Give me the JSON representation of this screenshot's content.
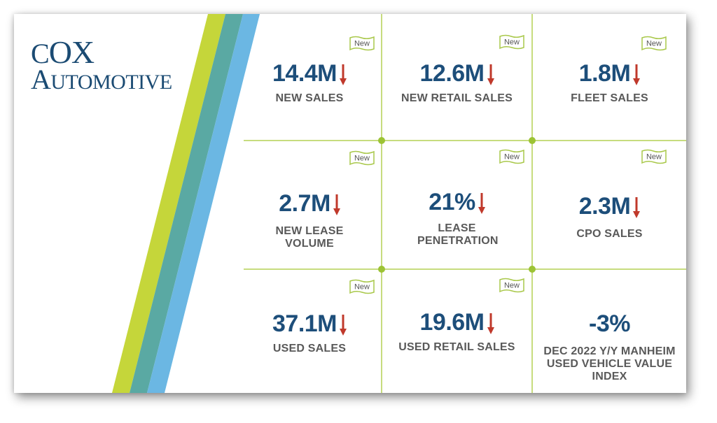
{
  "brand": {
    "line1": "Cox",
    "line2": "Automotive",
    "colors": {
      "lime": "#c5d63a",
      "teal": "#5aa9a3",
      "sky": "#6bb7e3",
      "navy": "#1b4b73"
    }
  },
  "badge_text": "New",
  "tiles": [
    {
      "value": "14.4M",
      "label": "NEW SALES",
      "trend": "down",
      "badge": true
    },
    {
      "value": "12.6M",
      "label": "NEW RETAIL SALES",
      "trend": "down",
      "badge": true
    },
    {
      "value": "1.8M",
      "label": "FLEET SALES",
      "trend": "down",
      "badge": true
    },
    {
      "value": "2.7M",
      "label": "NEW LEASE VOLUME",
      "trend": "down",
      "badge": true
    },
    {
      "value": "21%",
      "label": "LEASE PENETRATION",
      "trend": "down",
      "badge": true
    },
    {
      "value": "2.3M",
      "label": "CPO SALES",
      "trend": "down",
      "badge": true
    },
    {
      "value": "37.1M",
      "label": "USED SALES",
      "trend": "down",
      "badge": true
    },
    {
      "value": "19.6M",
      "label": "USED RETAIL SALES",
      "trend": "down",
      "badge": true
    },
    {
      "value": "-3%",
      "label": "DEC 2022 Y/Y MANHEIM USED VEHICLE VALUE INDEX",
      "trend": "none",
      "badge": false
    }
  ]
}
